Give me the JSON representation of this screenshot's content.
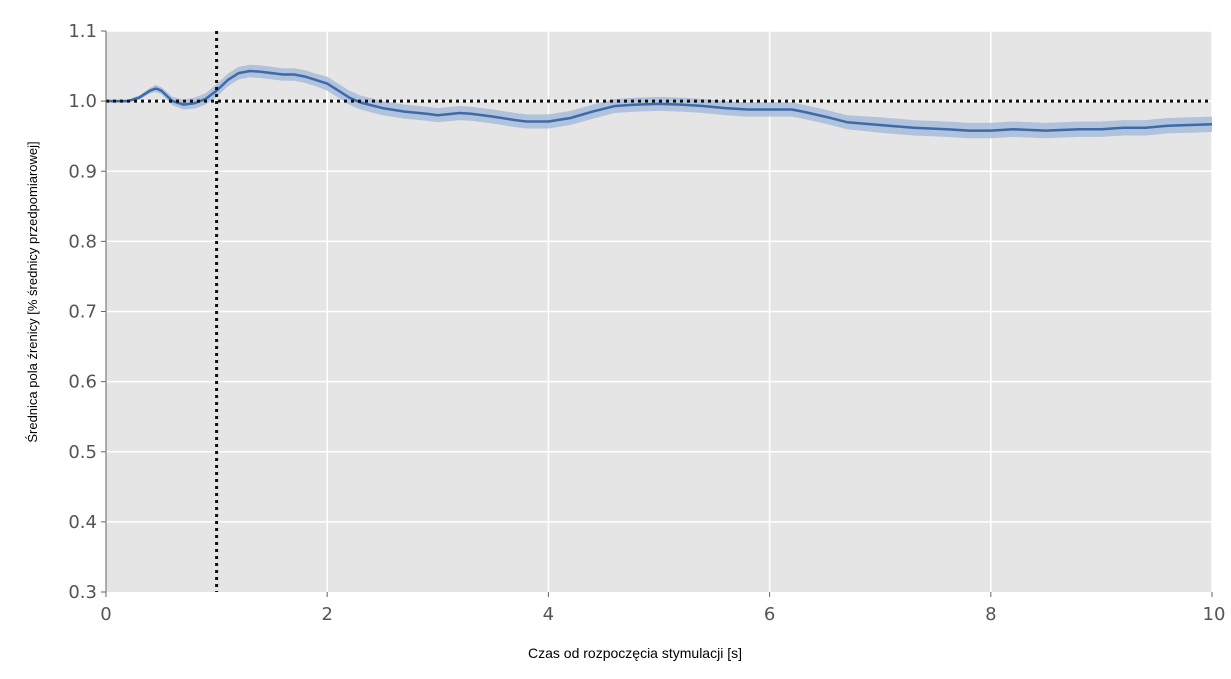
{
  "chart_data": {
    "type": "line",
    "title": "",
    "xlabel": "Czas od rozpoczęcia stymulacji [s]",
    "ylabel": "Średnica pola źrenicy [% średnicy przedpomiarowej]",
    "xlim": [
      0,
      10
    ],
    "ylim": [
      0.3,
      1.1
    ],
    "x_ticks": [
      0,
      2,
      4,
      6,
      8,
      10
    ],
    "x_tick_labels": [
      "0",
      "2",
      "4",
      "6",
      "8",
      "10"
    ],
    "y_ticks": [
      0.3,
      0.4,
      0.5,
      0.6,
      0.7,
      0.8,
      0.9,
      1.0,
      1.1
    ],
    "y_tick_labels": [
      "0.3",
      "0.4",
      "0.5",
      "0.6",
      "0.7",
      "0.8",
      "0.9",
      "1.0",
      "1.1"
    ],
    "grid": true,
    "reference_lines": {
      "vertical_x": 1.0,
      "horizontal_y": 1.0,
      "style": "dotted"
    },
    "colors": {
      "line": "#3d6aa8",
      "band": "#9fb6d9",
      "background": "#e5e5e5",
      "grid": "#ffffff",
      "reference": "#111111"
    },
    "series": [
      {
        "x": [
          0,
          0.2,
          0.3,
          0.4,
          0.45,
          0.5,
          0.6,
          0.7,
          0.8,
          0.9,
          1.0,
          1.1,
          1.2,
          1.3,
          1.4,
          1.5,
          1.6,
          1.7,
          1.8,
          1.9,
          2.0,
          2.1,
          2.2,
          2.3,
          2.5,
          2.7,
          2.9,
          3.0,
          3.2,
          3.3,
          3.5,
          3.7,
          3.8,
          4.0,
          4.2,
          4.4,
          4.6,
          4.8,
          5.0,
          5.2,
          5.4,
          5.6,
          5.8,
          6.0,
          6.2,
          6.3,
          6.5,
          6.7,
          7.0,
          7.3,
          7.6,
          7.8,
          8.0,
          8.2,
          8.5,
          8.8,
          9.0,
          9.2,
          9.4,
          9.6,
          9.8,
          10.0
        ],
        "y": [
          1.0,
          1.0,
          1.005,
          1.015,
          1.018,
          1.015,
          1.0,
          0.995,
          0.997,
          1.003,
          1.015,
          1.03,
          1.04,
          1.043,
          1.042,
          1.04,
          1.038,
          1.038,
          1.035,
          1.03,
          1.025,
          1.015,
          1.005,
          0.998,
          0.99,
          0.985,
          0.982,
          0.98,
          0.983,
          0.982,
          0.978,
          0.973,
          0.971,
          0.971,
          0.976,
          0.985,
          0.993,
          0.995,
          0.996,
          0.995,
          0.993,
          0.99,
          0.988,
          0.988,
          0.988,
          0.985,
          0.978,
          0.97,
          0.966,
          0.962,
          0.96,
          0.958,
          0.958,
          0.96,
          0.958,
          0.96,
          0.96,
          0.962,
          0.962,
          0.965,
          0.966,
          0.967
        ],
        "ci_halfwidth": [
          0.002,
          0.002,
          0.003,
          0.004,
          0.005,
          0.005,
          0.006,
          0.007,
          0.008,
          0.008,
          0.009,
          0.009,
          0.009,
          0.009,
          0.009,
          0.009,
          0.009,
          0.009,
          0.009,
          0.009,
          0.01,
          0.01,
          0.01,
          0.01,
          0.01,
          0.01,
          0.01,
          0.01,
          0.01,
          0.01,
          0.01,
          0.01,
          0.01,
          0.01,
          0.01,
          0.01,
          0.01,
          0.01,
          0.01,
          0.01,
          0.01,
          0.01,
          0.01,
          0.01,
          0.01,
          0.01,
          0.01,
          0.01,
          0.011,
          0.011,
          0.011,
          0.011,
          0.011,
          0.011,
          0.011,
          0.011,
          0.011,
          0.011,
          0.011,
          0.011,
          0.011,
          0.011
        ]
      }
    ]
  }
}
